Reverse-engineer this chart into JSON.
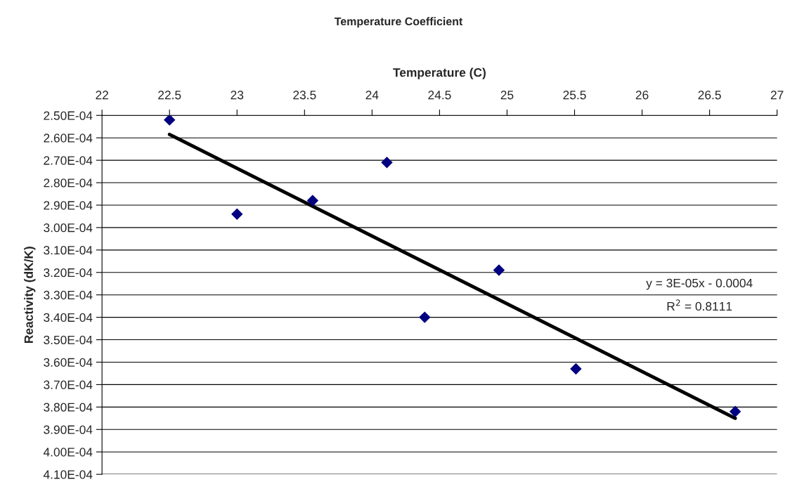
{
  "chart_data": {
    "type": "scatter",
    "title": "Temperature Coefficient",
    "xlabel": "Temperature (C)",
    "ylabel": "Reactivity (dK/K)",
    "series": [
      {
        "color": "#000080",
        "marker": "diamond",
        "x": [
          22.5,
          23.0,
          23.56,
          24.11,
          24.39,
          24.94,
          25.51,
          26.69
        ],
        "values": [
          0.000252,
          0.000294,
          0.000288,
          0.000271,
          0.00034,
          0.000319,
          0.000363,
          0.000382
        ]
      },
      {
        "type": "line",
        "color": "#000000",
        "marker": "none",
        "line_style": "solid",
        "x": [
          22.5,
          26.69
        ],
        "values": [
          0.0002585,
          0.000385
        ]
      }
    ],
    "xlim": [
      22,
      27
    ],
    "xticks": [
      22,
      22.5,
      23,
      23.5,
      24,
      24.5,
      25,
      25.5,
      26,
      26.5,
      27
    ],
    "ylim": [
      0.00041,
      0.00025
    ],
    "yticks": [
      {
        "value": 0.00025,
        "label": "2.50E-04"
      },
      {
        "value": 0.00026,
        "label": "2.60E-04"
      },
      {
        "value": 0.00027,
        "label": "2.70E-04"
      },
      {
        "value": 0.00028,
        "label": "2.80E-04"
      },
      {
        "value": 0.00029,
        "label": "2.90E-04"
      },
      {
        "value": 0.0003,
        "label": "3.00E-04"
      },
      {
        "value": 0.00031,
        "label": "3.10E-04"
      },
      {
        "value": 0.00032,
        "label": "3.20E-04"
      },
      {
        "value": 0.00033,
        "label": "3.30E-04"
      },
      {
        "value": 0.00034,
        "label": "3.40E-04"
      },
      {
        "value": 0.00035,
        "label": "3.50E-04"
      },
      {
        "value": 0.00036,
        "label": "3.60E-04"
      },
      {
        "value": 0.00037,
        "label": "3.70E-04"
      },
      {
        "value": 0.00038,
        "label": "3.80E-04"
      },
      {
        "value": 0.00039,
        "label": "3.90E-04"
      },
      {
        "value": 0.0004,
        "label": "4.00E-04"
      },
      {
        "value": 0.00041,
        "label": "4.10E-04"
      }
    ],
    "grid": "y",
    "legend": false,
    "annotations": [
      "y = 3E-05x - 0.0004",
      "R$^{2}$ = 0.8111"
    ]
  }
}
